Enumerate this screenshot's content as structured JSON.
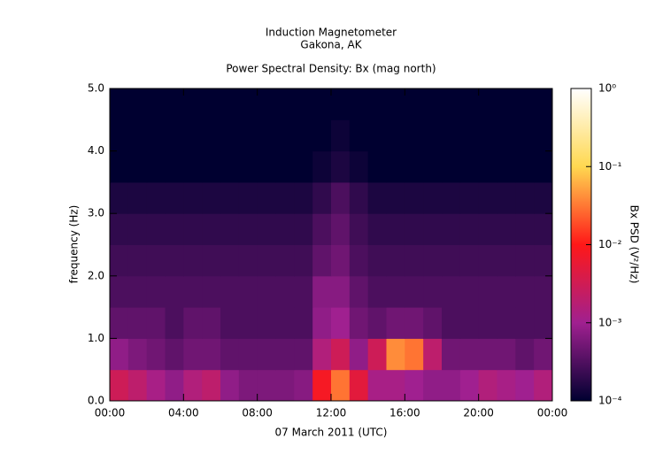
{
  "chart_data": {
    "type": "heatmap",
    "title": "Induction Magnetometer",
    "subtitle": "Gakona, AK",
    "subtitle2": "Power Spectral Density: Bx (mag north)",
    "xlabel": "07 March 2011 (UTC)",
    "ylabel": "frequency (Hz)",
    "colorbar_label": "Bx PSD (V²/Hz)",
    "colorscale": [
      "#000030",
      "#a02090",
      "#ff1818",
      "#ffd850",
      "#ffffff"
    ],
    "log_color": true,
    "xlim": [
      0,
      24
    ],
    "xticks": [
      {
        "value": 0,
        "label": "00:00"
      },
      {
        "value": 4,
        "label": "04:00"
      },
      {
        "value": 8,
        "label": "08:00"
      },
      {
        "value": 12,
        "label": "12:00"
      },
      {
        "value": 16,
        "label": "16:00"
      },
      {
        "value": 20,
        "label": "20:00"
      },
      {
        "value": 24,
        "label": "00:00"
      }
    ],
    "ylim": [
      0,
      5
    ],
    "yticks": [
      {
        "value": 0,
        "label": "0.0"
      },
      {
        "value": 1,
        "label": "1.0"
      },
      {
        "value": 2,
        "label": "2.0"
      },
      {
        "value": 3,
        "label": "3.0"
      },
      {
        "value": 4,
        "label": "4.0"
      },
      {
        "value": 5,
        "label": "5.0"
      }
    ],
    "clim": [
      0.0001,
      1
    ],
    "cticks": [
      {
        "value": 0.0001,
        "label": "10⁻⁴"
      },
      {
        "value": 0.001,
        "label": "10⁻³"
      },
      {
        "value": 0.01,
        "label": "10⁻²"
      },
      {
        "value": 0.1,
        "label": "10⁻¹"
      },
      {
        "value": 1,
        "label": "10⁰"
      }
    ],
    "xbins": [
      0,
      1,
      2,
      3,
      4,
      5,
      6,
      7,
      8,
      9,
      10,
      11,
      12,
      13,
      14,
      15,
      16,
      17,
      18,
      19,
      20,
      21,
      22,
      23,
      24
    ],
    "ybins": [
      0,
      0.5,
      1,
      1.5,
      2,
      2.5,
      3,
      3.5,
      4,
      4.5,
      5
    ],
    "z": [
      [
        0.003,
        0.002,
        0.0012,
        0.0008,
        0.0015,
        0.002,
        0.0008,
        0.0006,
        0.0006,
        0.0006,
        0.0007,
        0.008,
        0.03,
        0.005,
        0.0012,
        0.0012,
        0.001,
        0.0008,
        0.0008,
        0.001,
        0.0015,
        0.0012,
        0.001,
        0.0015
      ],
      [
        0.0008,
        0.0006,
        0.0005,
        0.0004,
        0.0005,
        0.0005,
        0.0004,
        0.0004,
        0.0004,
        0.0004,
        0.0004,
        0.0015,
        0.003,
        0.0008,
        0.003,
        0.04,
        0.03,
        0.002,
        0.0005,
        0.0005,
        0.0005,
        0.0005,
        0.0004,
        0.0005
      ],
      [
        0.0004,
        0.0004,
        0.0004,
        0.0003,
        0.0004,
        0.0004,
        0.0003,
        0.0003,
        0.0003,
        0.0003,
        0.0003,
        0.0008,
        0.001,
        0.0005,
        0.0004,
        0.0005,
        0.0005,
        0.0004,
        0.0003,
        0.0003,
        0.0003,
        0.0003,
        0.0003,
        0.0003
      ],
      [
        0.0003,
        0.0003,
        0.0003,
        0.0003,
        0.0003,
        0.0003,
        0.0003,
        0.0003,
        0.0003,
        0.0003,
        0.0003,
        0.0007,
        0.0007,
        0.0004,
        0.0003,
        0.0003,
        0.0003,
        0.0003,
        0.0003,
        0.0003,
        0.0003,
        0.0003,
        0.0003,
        0.0003
      ],
      [
        0.00025,
        0.00025,
        0.00025,
        0.00025,
        0.00025,
        0.00025,
        0.00025,
        0.00025,
        0.00025,
        0.00025,
        0.00025,
        0.0004,
        0.0005,
        0.0003,
        0.00025,
        0.00025,
        0.00025,
        0.00025,
        0.00025,
        0.00025,
        0.00025,
        0.00025,
        0.00025,
        0.00025
      ],
      [
        0.0002,
        0.0002,
        0.0002,
        0.0002,
        0.0002,
        0.0002,
        0.0002,
        0.0002,
        0.0002,
        0.0002,
        0.0002,
        0.0003,
        0.0004,
        0.00025,
        0.0002,
        0.0002,
        0.0002,
        0.0002,
        0.0002,
        0.0002,
        0.0002,
        0.0002,
        0.0002,
        0.0002
      ],
      [
        0.00015,
        0.00015,
        0.00015,
        0.00015,
        0.00015,
        0.00015,
        0.00015,
        0.00015,
        0.00015,
        0.00015,
        0.00015,
        0.0002,
        0.0003,
        0.0002,
        0.00015,
        0.00015,
        0.00015,
        0.00015,
        0.00015,
        0.00015,
        0.00015,
        0.00015,
        0.00015,
        0.00015
      ],
      [
        0.0001,
        0.0001,
        0.0001,
        0.0001,
        0.0001,
        0.0001,
        0.0001,
        0.0001,
        0.0001,
        0.0001,
        0.0001,
        0.00012,
        0.00015,
        0.00012,
        0.0001,
        0.0001,
        0.0001,
        0.0001,
        0.0001,
        0.0001,
        0.0001,
        0.0001,
        0.0001,
        0.0001
      ],
      [
        0.0001,
        0.0001,
        0.0001,
        0.0001,
        0.0001,
        0.0001,
        0.0001,
        0.0001,
        0.0001,
        0.0001,
        0.0001,
        0.0001,
        0.00012,
        0.0001,
        0.0001,
        0.0001,
        0.0001,
        0.0001,
        0.0001,
        0.0001,
        0.0001,
        0.0001,
        0.0001,
        0.0001
      ],
      [
        0.0001,
        0.0001,
        0.0001,
        0.0001,
        0.0001,
        0.0001,
        0.0001,
        0.0001,
        0.0001,
        0.0001,
        0.0001,
        0.0001,
        0.0001,
        0.0001,
        0.0001,
        0.0001,
        0.0001,
        0.0001,
        0.0001,
        0.0001,
        0.0001,
        0.0001,
        0.0001,
        0.0001
      ]
    ]
  }
}
